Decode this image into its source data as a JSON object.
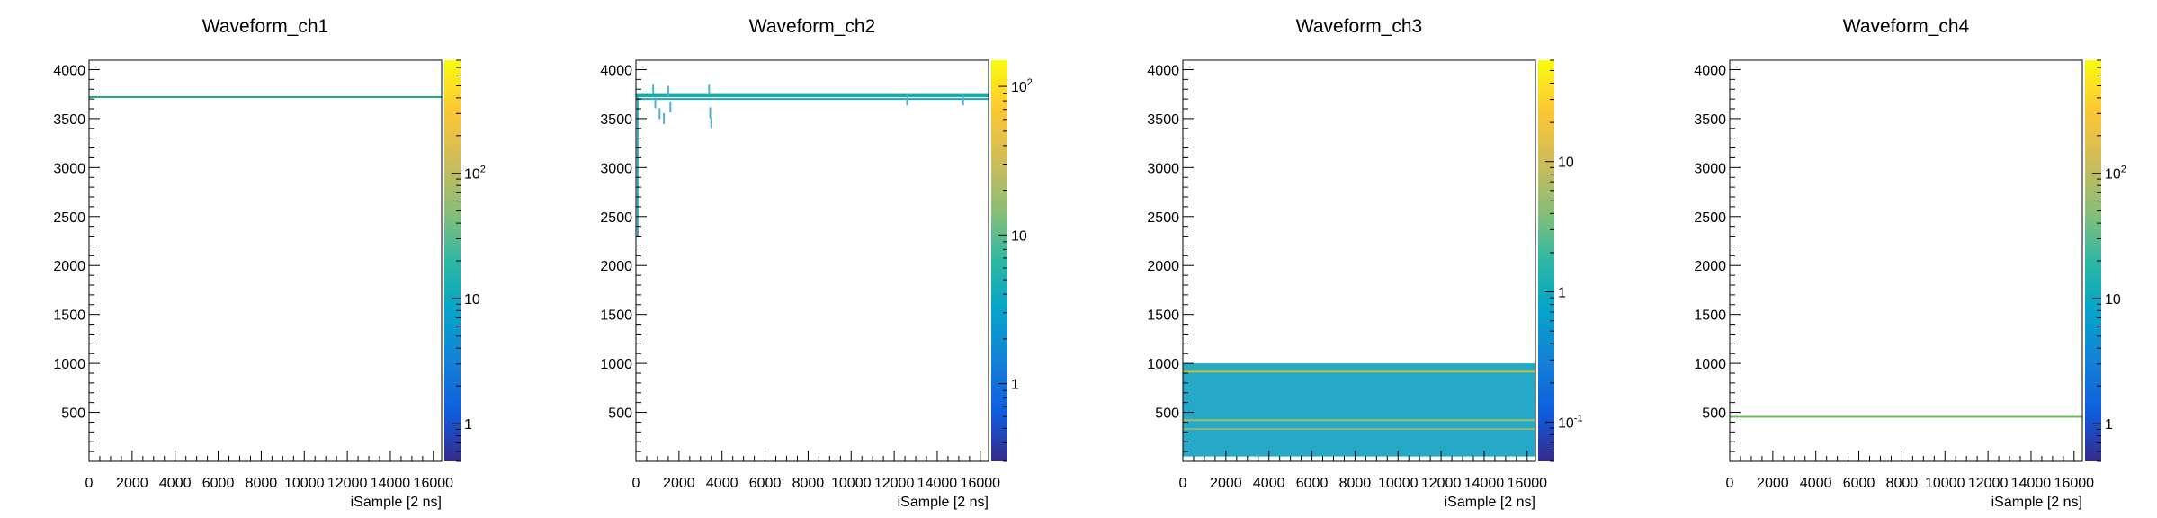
{
  "chart_data": [
    {
      "type": "heatmap",
      "title": "Waveform_ch1",
      "xlabel": "iSample [2 ns]",
      "ylabel": "",
      "xlim": [
        0,
        16384
      ],
      "ylim": [
        0,
        4096
      ],
      "x_ticks": [
        "0",
        "2000",
        "4000",
        "6000",
        "8000",
        "10000",
        "12000",
        "14000",
        "16000"
      ],
      "y_ticks": [
        "500",
        "1000",
        "1500",
        "2000",
        "2500",
        "3000",
        "3500",
        "4000"
      ],
      "z_scale": "log",
      "zlim": [
        0.5,
        800
      ],
      "z_ticks": [
        {
          "value": 1,
          "label": "1"
        },
        {
          "value": 10,
          "label": "10"
        },
        {
          "value": 100,
          "label": "10",
          "exp": "2"
        }
      ],
      "bands": [
        {
          "y": 3720,
          "height": 10,
          "color": "#19a98a",
          "x_from": 0,
          "x_to": 16384
        }
      ],
      "scatter": []
    },
    {
      "type": "heatmap",
      "title": "Waveform_ch2",
      "xlabel": "iSample [2 ns]",
      "ylabel": "",
      "xlim": [
        0,
        16384
      ],
      "ylim": [
        0,
        4096
      ],
      "x_ticks": [
        "0",
        "2000",
        "4000",
        "6000",
        "8000",
        "10000",
        "12000",
        "14000",
        "16000"
      ],
      "y_ticks": [
        "500",
        "1000",
        "1500",
        "2000",
        "2500",
        "3000",
        "3500",
        "4000"
      ],
      "z_scale": "log",
      "zlim": [
        0.3,
        150
      ],
      "z_ticks": [
        {
          "value": 1,
          "label": "1"
        },
        {
          "value": 10,
          "label": "10"
        },
        {
          "value": 100,
          "label": "10",
          "exp": "2"
        }
      ],
      "bands": [
        {
          "y": 3740,
          "height": 40,
          "color": "#1ba8a4",
          "x_from": 0,
          "x_to": 16384
        },
        {
          "y": 3700,
          "height": 12,
          "color": "#1aa7c0",
          "x_from": 0,
          "x_to": 16384
        }
      ],
      "vertical_lines": [
        {
          "x": 80,
          "y_from": 2300,
          "y_to": 3760,
          "color": "#3aa0c8"
        }
      ],
      "scatter": [
        {
          "x": 800,
          "y": 3800
        },
        {
          "x": 900,
          "y": 3660
        },
        {
          "x": 1100,
          "y": 3550
        },
        {
          "x": 1300,
          "y": 3500
        },
        {
          "x": 1500,
          "y": 3780
        },
        {
          "x": 1600,
          "y": 3620
        },
        {
          "x": 3400,
          "y": 3800
        },
        {
          "x": 3450,
          "y": 3560
        },
        {
          "x": 3500,
          "y": 3460
        },
        {
          "x": 12600,
          "y": 3690
        },
        {
          "x": 15200,
          "y": 3690
        }
      ]
    },
    {
      "type": "heatmap",
      "title": "Waveform_ch3",
      "xlabel": "iSample [2 ns]",
      "ylabel": "",
      "xlim": [
        0,
        16384
      ],
      "ylim": [
        0,
        4096
      ],
      "x_ticks": [
        "0",
        "2000",
        "4000",
        "6000",
        "8000",
        "10000",
        "12000",
        "14000",
        "16000"
      ],
      "y_ticks": [
        "500",
        "1000",
        "1500",
        "2000",
        "2500",
        "3000",
        "3500",
        "4000"
      ],
      "z_scale": "log",
      "zlim": [
        0.05,
        60
      ],
      "z_ticks": [
        {
          "value": 0.1,
          "label": "10",
          "exp": "-1"
        },
        {
          "value": 1,
          "label": "1"
        },
        {
          "value": 10,
          "label": "10"
        }
      ],
      "fill_region": {
        "y_from": 50,
        "y_to": 1000,
        "color": "#1aa3c4",
        "x_from": 0,
        "x_to": 16384
      },
      "bands": [
        {
          "y": 920,
          "height": 25,
          "color": "#c9c84c",
          "x_from": 0,
          "x_to": 16384
        },
        {
          "y": 420,
          "height": 14,
          "color": "#9fbf6e",
          "x_from": 0,
          "x_to": 16384
        },
        {
          "y": 330,
          "height": 12,
          "color": "#8ab878",
          "x_from": 0,
          "x_to": 16384
        }
      ],
      "scatter": []
    },
    {
      "type": "heatmap",
      "title": "Waveform_ch4",
      "xlabel": "iSample [2 ns]",
      "ylabel": "",
      "xlim": [
        0,
        16384
      ],
      "ylim": [
        0,
        4096
      ],
      "x_ticks": [
        "0",
        "2000",
        "4000",
        "6000",
        "8000",
        "10000",
        "12000",
        "14000",
        "16000"
      ],
      "y_ticks": [
        "500",
        "1000",
        "1500",
        "2000",
        "2500",
        "3000",
        "3500",
        "4000"
      ],
      "z_scale": "log",
      "zlim": [
        0.5,
        800
      ],
      "z_ticks": [
        {
          "value": 1,
          "label": "1"
        },
        {
          "value": 10,
          "label": "10"
        },
        {
          "value": 100,
          "label": "10",
          "exp": "2"
        }
      ],
      "bands": [
        {
          "y": 455,
          "height": 10,
          "color": "#6bbf57",
          "x_from": 0,
          "x_to": 16384
        }
      ],
      "scatter": []
    }
  ]
}
